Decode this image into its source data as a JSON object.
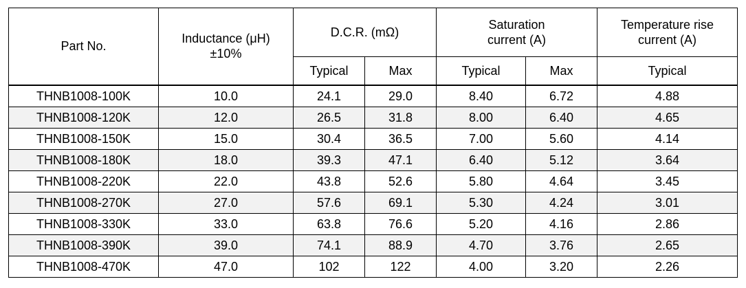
{
  "headers": {
    "part_no": "Part No.",
    "inductance_line1": "Inductance (μH)",
    "inductance_line2": "±10%",
    "dcr": "D.C.R. (mΩ)",
    "saturation_line1": "Saturation",
    "saturation_line2": "current (A)",
    "temp_rise_line1": "Temperature rise",
    "temp_rise_line2": "current (A)",
    "dcr_typical": "Typical",
    "dcr_max": "Max",
    "sat_typical": "Typical",
    "sat_max": "Max",
    "temp_typical": "Typical"
  },
  "rows": [
    {
      "part": "THNB1008-100K",
      "inductance": "10.0",
      "dcr_typ": "24.1",
      "dcr_max": "29.0",
      "sat_typ": "8.40",
      "sat_max": "6.72",
      "temp_typ": "4.88"
    },
    {
      "part": "THNB1008-120K",
      "inductance": "12.0",
      "dcr_typ": "26.5",
      "dcr_max": "31.8",
      "sat_typ": "8.00",
      "sat_max": "6.40",
      "temp_typ": "4.65"
    },
    {
      "part": "THNB1008-150K",
      "inductance": "15.0",
      "dcr_typ": "30.4",
      "dcr_max": "36.5",
      "sat_typ": "7.00",
      "sat_max": "5.60",
      "temp_typ": "4.14"
    },
    {
      "part": "THNB1008-180K",
      "inductance": "18.0",
      "dcr_typ": "39.3",
      "dcr_max": "47.1",
      "sat_typ": "6.40",
      "sat_max": "5.12",
      "temp_typ": "3.64"
    },
    {
      "part": "THNB1008-220K",
      "inductance": "22.0",
      "dcr_typ": "43.8",
      "dcr_max": "52.6",
      "sat_typ": "5.80",
      "sat_max": "4.64",
      "temp_typ": "3.45"
    },
    {
      "part": "THNB1008-270K",
      "inductance": "27.0",
      "dcr_typ": "57.6",
      "dcr_max": "69.1",
      "sat_typ": "5.30",
      "sat_max": "4.24",
      "temp_typ": "3.01"
    },
    {
      "part": "THNB1008-330K",
      "inductance": "33.0",
      "dcr_typ": "63.8",
      "dcr_max": "76.6",
      "sat_typ": "5.20",
      "sat_max": "4.16",
      "temp_typ": "2.86"
    },
    {
      "part": "THNB1008-390K",
      "inductance": "39.0",
      "dcr_typ": "74.1",
      "dcr_max": "88.9",
      "sat_typ": "4.70",
      "sat_max": "3.76",
      "temp_typ": "2.65"
    },
    {
      "part": "THNB1008-470K",
      "inductance": "47.0",
      "dcr_typ": "102",
      "dcr_max": "122",
      "sat_typ": "4.00",
      "sat_max": "3.20",
      "temp_typ": "2.26"
    }
  ],
  "colors": {
    "shaded_row": "#f2f2f2",
    "border": "#000000"
  }
}
